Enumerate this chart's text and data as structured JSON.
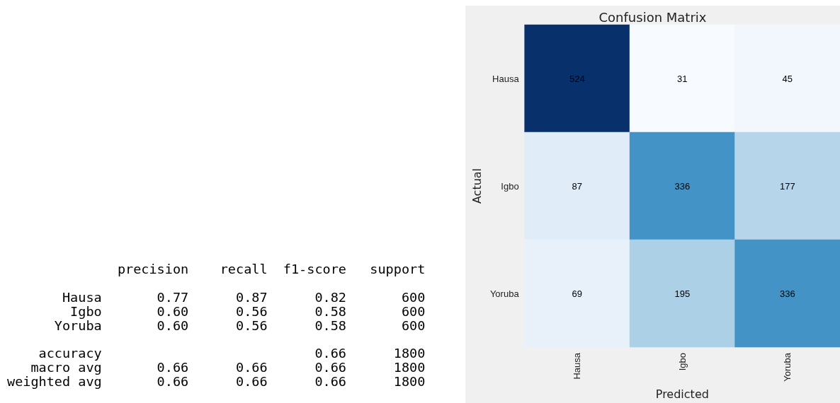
{
  "chart_data": [
    {
      "type": "other",
      "annotations": [
        "              precision    recall  f1-score   support",
        "       Hausa       0.77      0.87      0.82       600",
        "        Igbo       0.60      0.56      0.58       600",
        "      Yoruba       0.60      0.56      0.58       600",
        "    accuracy                           0.66      1800",
        "   macro avg       0.66      0.66      0.66      1800",
        "weighted avg       0.66      0.66      0.66      1800"
      ]
    },
    {
      "type": "heatmap",
      "title": "Confusion Matrix",
      "xlabel": "Predicted",
      "ylabel": "Actual",
      "categories": [
        "Hausa",
        "Igbo",
        "Yoruba"
      ],
      "y_categories": [
        "Hausa",
        "Igbo",
        "Yoruba"
      ],
      "cells": [
        [
          524,
          31,
          45
        ],
        [
          87,
          336,
          177
        ],
        [
          69,
          195,
          336
        ]
      ],
      "data_labels": true
    }
  ]
}
